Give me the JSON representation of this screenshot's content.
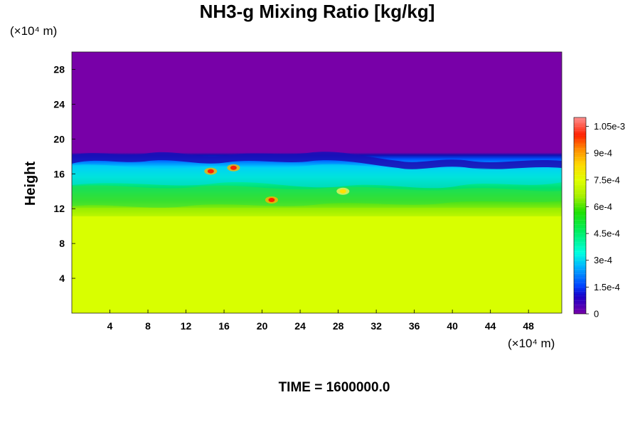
{
  "chart_data": {
    "type": "heatmap",
    "title": "NH3-g Mixing Ratio [kg/kg]",
    "ylabel": "Height",
    "xlabel": "",
    "y_unit_label": "(×10⁴ m)",
    "x_unit_label": "(×10⁴ m)",
    "xlim": [
      0,
      51.5
    ],
    "ylim": [
      0,
      30
    ],
    "x_ticks": [
      "4",
      "8",
      "12",
      "16",
      "20",
      "24",
      "28",
      "32",
      "36",
      "40",
      "44",
      "48"
    ],
    "y_ticks": [
      "4",
      "8",
      "12",
      "16",
      "20",
      "24",
      "28"
    ],
    "colorbar": {
      "range": [
        0,
        0.0011
      ],
      "ticks": [
        "0",
        "1.5e-4",
        "3e-4",
        "4.5e-4",
        "6e-4",
        "7.5e-4",
        "9e-4",
        "1.05e-3"
      ],
      "tick_values": [
        0,
        0.00015,
        0.0003,
        0.00045,
        0.0006,
        0.00075,
        0.0009,
        0.00105
      ]
    },
    "layers": [
      {
        "height_range": [
          0,
          11
        ],
        "value": 0.00078
      },
      {
        "height_range": [
          11,
          13
        ],
        "value": 0.00065
      },
      {
        "height_range": [
          13,
          15.5
        ],
        "value": 0.0005
      },
      {
        "height_range": [
          15.5,
          18
        ],
        "value": 0.00035
      },
      {
        "height_range": [
          18,
          30
        ],
        "value": 0
      }
    ],
    "hotspots": [
      {
        "x": 14.6,
        "y": 16.3,
        "value": 0.00101
      },
      {
        "x": 17.0,
        "y": 16.7,
        "value": 0.00103
      },
      {
        "x": 21.0,
        "y": 13.0,
        "value": 0.00098
      },
      {
        "x": 28.5,
        "y": 14.0,
        "value": 0.0008
      }
    ]
  },
  "footer": {
    "time_label": "TIME = 1600000.0"
  }
}
